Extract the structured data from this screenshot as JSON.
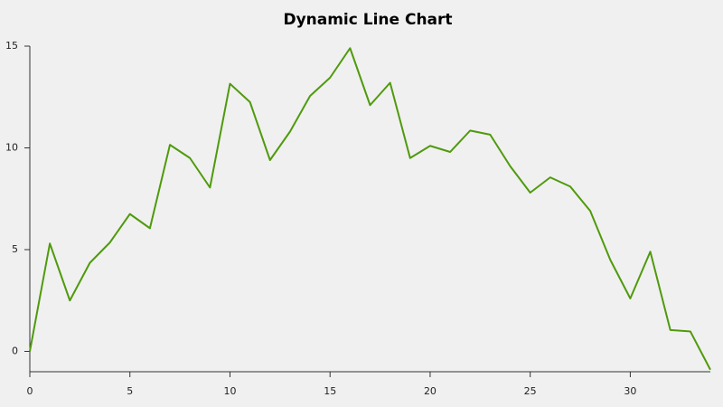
{
  "chart_data": {
    "type": "line",
    "title": "Dynamic Line Chart",
    "x": [
      0,
      1,
      2,
      3,
      4,
      5,
      6,
      7,
      8,
      9,
      10,
      11,
      12,
      13,
      14,
      15,
      16,
      17,
      18,
      19,
      20,
      21,
      22,
      23,
      24,
      25,
      26,
      27,
      28,
      29,
      30,
      31,
      32,
      33,
      34
    ],
    "series": [
      {
        "color": "#4f9a0c",
        "values": [
          0,
          5.3,
          2.5,
          4.35,
          5.35,
          6.75,
          6.05,
          10.15,
          9.5,
          8.05,
          13.15,
          12.25,
          9.4,
          10.8,
          12.55,
          13.45,
          14.9,
          12.1,
          13.2,
          9.5,
          10.1,
          9.8,
          10.85,
          10.65,
          9.1,
          7.8,
          8.55,
          8.1,
          6.9,
          4.5,
          2.6,
          4.9,
          1.05,
          0.98,
          -0.9
        ]
      }
    ],
    "xlim": [
      0,
      34
    ],
    "xticks": [
      0,
      5,
      10,
      15,
      20,
      25,
      30
    ],
    "ylim": [
      -1,
      15
    ],
    "yticks": [
      0,
      5,
      10,
      15
    ],
    "grid": false
  }
}
